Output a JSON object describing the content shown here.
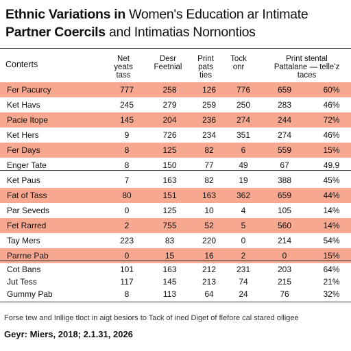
{
  "title": {
    "bold1": "Ethnic Variations in",
    "normal1": " Women's Education ar Intimate",
    "bold2": "Partner Coercils",
    "normal2": " and Intimatias Nornontios"
  },
  "columns": [
    {
      "key": "contents",
      "label": "Conterts"
    },
    {
      "key": "c1",
      "label": "Net\nyeats\ntass"
    },
    {
      "key": "c2",
      "label": "Desr\nFeetnial"
    },
    {
      "key": "c3",
      "label": "Print\npats\nties"
    },
    {
      "key": "c4",
      "label": "Tock\nonr"
    },
    {
      "key": "c5",
      "label": "Print stental\nPattalane — telle'z\ntaces"
    }
  ],
  "rows": [
    {
      "label": "Fer Pacurcy",
      "values": [
        "777",
        "258",
        "126",
        "776",
        "659",
        "60%"
      ],
      "highlight": true
    },
    {
      "label": "Ket Havs",
      "values": [
        "245",
        "279",
        "259",
        "250",
        "283",
        "46%"
      ],
      "highlight": false
    },
    {
      "label": "Pacie Itope",
      "values": [
        "145",
        "204",
        "236",
        "274",
        "244",
        "72%"
      ],
      "highlight": true
    },
    {
      "label": "Ket Hers",
      "values": [
        "9",
        "726",
        "234",
        "351",
        "274",
        "46%"
      ],
      "highlight": false
    },
    {
      "label": "Fer Days",
      "values": [
        "8",
        "125",
        "82",
        "6",
        "559",
        "15%"
      ],
      "highlight": true
    },
    {
      "label": "Enger Tate",
      "values": [
        "8",
        "150",
        "77",
        "49",
        "67",
        "49.9"
      ],
      "highlight": false
    },
    {
      "label": "Ket Paus",
      "values": [
        "7",
        "163",
        "82",
        "19",
        "388",
        "45%"
      ],
      "highlight": false
    },
    {
      "label": "Fat of Tass",
      "values": [
        "80",
        "151",
        "163",
        "362",
        "659",
        "44%"
      ],
      "highlight": true
    },
    {
      "label": "Par Seveds",
      "values": [
        "0",
        "125",
        "10",
        "4",
        "105",
        "14%"
      ],
      "highlight": false
    },
    {
      "label": "Fet Rarred",
      "values": [
        "2",
        "755",
        "52",
        "5",
        "560",
        "14%"
      ],
      "highlight": true
    },
    {
      "label": "Tay Mers",
      "values": [
        "223",
        "83",
        "220",
        "0",
        "214",
        "54%"
      ],
      "highlight": false
    },
    {
      "label": "Parrne Pab",
      "values": [
        "0",
        "15",
        "16",
        "2",
        "0",
        "15%"
      ],
      "highlight": true
    },
    {
      "label": "Cot Bans",
      "values": [
        "101",
        "163",
        "212",
        "231",
        "203",
        "64%"
      ],
      "highlight": false
    },
    {
      "label": "Jut Tess",
      "values": [
        "117",
        "145",
        "213",
        "74",
        "215",
        "21%"
      ],
      "highlight": false
    },
    {
      "label": "Gummy Pab",
      "values": [
        "8",
        "113",
        "64",
        "24",
        "76",
        "32%"
      ],
      "highlight": false
    }
  ],
  "note": "Forse tew and Inllige tloct in aigt besiors to Tack of ined Diget of flefore cal stared olligee",
  "footer": "Geyr: Miers, 2018; 2.1.31, 2026"
}
